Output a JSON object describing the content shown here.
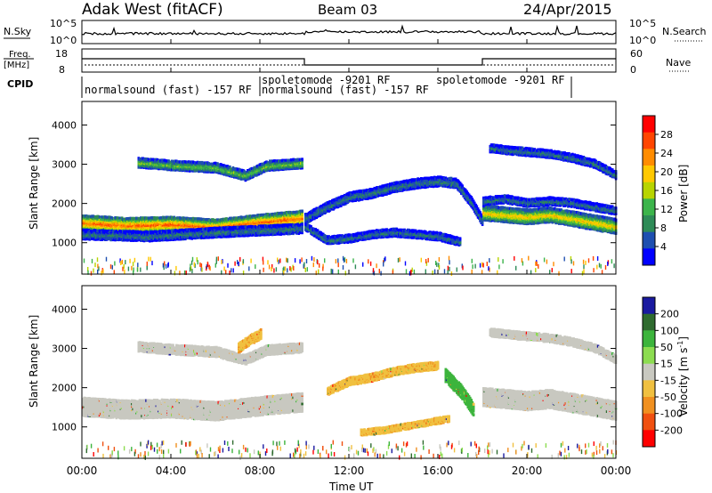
{
  "header": {
    "station": "Adak West (fitACF)",
    "beam": "Beam 03",
    "date": "24/Apr/2015"
  },
  "top_panels": {
    "nsky_label": "N.Sky",
    "nsky_ticks": [
      "10^5",
      "10^0"
    ],
    "nsearch_label": "N.Search",
    "nsearch_ticks": [
      "10^5",
      "10^0"
    ],
    "freq_label": "Freq.",
    "freq_unit": "[MHz]",
    "freq_ticks": [
      "18",
      "8"
    ],
    "nave_label": "Nave",
    "nave_ticks": [
      "60",
      "0"
    ],
    "cpid_label": "CPID",
    "cpid_segments": [
      {
        "name": "normalsound (fast) -157 RF",
        "start_hr": 0.0,
        "end_hr": 10.0
      },
      {
        "name": "spoletomode -9201 RF",
        "start_hr": 10.0,
        "end_hr": 18.0
      },
      {
        "name": "normalsound (fast) -157 RF",
        "start_hr": 10.0,
        "end_hr": 18.0
      },
      {
        "name": "spoletomode -9201 RF",
        "start_hr": 18.0,
        "end_hr": 24.0
      }
    ]
  },
  "axis": {
    "x_label": "Time UT",
    "x_ticks": [
      "00:00",
      "04:00",
      "08:00",
      "12:00",
      "16:00",
      "20:00",
      "00:00"
    ],
    "y_label_html": "Slant Range [km]",
    "y_ticks": [
      "1000",
      "2000",
      "3000",
      "4000"
    ]
  },
  "colorbars": {
    "power": {
      "label": "Power [dB]",
      "ticks": [
        "28",
        "24",
        "20",
        "16",
        "12",
        "8",
        "4"
      ],
      "colors": [
        "#ff0000",
        "#ff4500",
        "#ff8c00",
        "#ffc800",
        "#b8d400",
        "#3cb44b",
        "#2e8b57",
        "#1e4fb0",
        "#0000ff"
      ]
    },
    "velocity": {
      "label": "Velocity [m s",
      "label_sup": "-1",
      "label_end": "]",
      "ticks": [
        "200",
        "100",
        "50",
        "15",
        "-15",
        "-50",
        "-100",
        "-200"
      ],
      "colors": [
        "#1a1aa0",
        "#2f6b2f",
        "#3cb43c",
        "#8cdc50",
        "#c8c8c0",
        "#f0c040",
        "#f09020",
        "#f05010",
        "#ff0000"
      ]
    }
  },
  "chart_data": {
    "type": "heatmap",
    "title": "Adak West (fitACF)",
    "xlabel": "Time UT",
    "ylabel": "Slant Range [km]",
    "xlim": [
      0,
      24
    ],
    "ylim": [
      200,
      4600
    ],
    "power_panel": {
      "variable": "Power [dB]",
      "clim": [
        0,
        32
      ],
      "bands": [
        {
          "name": "main",
          "t": [
            0,
            2,
            4,
            6,
            8,
            9.9
          ],
          "r_center": [
            1500,
            1430,
            1460,
            1390,
            1520,
            1620
          ],
          "half_width": 170,
          "power": 26
        },
        {
          "name": "upper",
          "t": [
            2.5,
            4,
            6,
            7.3,
            8.3,
            9.9
          ],
          "r_center": [
            3030,
            2960,
            2900,
            2700,
            2950,
            3010
          ],
          "half_width": 110,
          "power": 14
        },
        {
          "name": "lower-diffuse",
          "t": [
            0,
            3,
            6,
            9.9
          ],
          "r_center": [
            1200,
            1150,
            1250,
            1350
          ],
          "half_width": 120,
          "power": 8
        },
        {
          "name": "arc",
          "t": [
            10,
            11,
            12,
            13,
            14,
            15,
            16,
            16.8,
            17.5,
            18
          ],
          "r_center": [
            1600,
            1900,
            2150,
            2250,
            2400,
            2500,
            2550,
            2500,
            2000,
            1500
          ],
          "half_width": 110,
          "power": 8
        },
        {
          "name": "low-arc",
          "t": [
            10,
            11,
            12,
            13,
            14,
            15,
            16,
            17
          ],
          "r_center": [
            1400,
            1050,
            1100,
            1200,
            1250,
            1200,
            1150,
            1000
          ],
          "half_width": 90,
          "power": 8
        },
        {
          "name": "main-eve",
          "t": [
            18,
            19,
            20,
            21,
            22,
            23,
            24
          ],
          "r_center": [
            1750,
            1700,
            1650,
            1700,
            1600,
            1500,
            1400
          ],
          "half_width": 170,
          "power": 20
        },
        {
          "name": "upper-eve",
          "t": [
            18,
            19,
            20,
            21,
            22,
            23,
            24
          ],
          "r_center": [
            2050,
            2100,
            2000,
            2050,
            2000,
            1900,
            1800
          ],
          "half_width": 90,
          "power": 8
        },
        {
          "name": "top-eve",
          "t": [
            18.3,
            19,
            20,
            21,
            22,
            23,
            24
          ],
          "r_center": [
            3400,
            3350,
            3300,
            3250,
            3150,
            3000,
            2700
          ],
          "half_width": 90,
          "power": 8
        }
      ]
    },
    "velocity_panel": {
      "variable": "Velocity [m s-1]",
      "clim": [
        -200,
        200
      ],
      "bands": [
        {
          "name": "main",
          "t": [
            0,
            2,
            4,
            6,
            8,
            9.9
          ],
          "r_center": [
            1500,
            1430,
            1460,
            1390,
            1520,
            1620
          ],
          "half_width": 220,
          "velocity": 0
        },
        {
          "name": "upper",
          "t": [
            2.5,
            4,
            6,
            7.3,
            8.3,
            9.9
          ],
          "r_center": [
            3030,
            2960,
            2900,
            2700,
            2950,
            3010
          ],
          "half_width": 110,
          "velocity": 0
        },
        {
          "name": "upper-orange",
          "t": [
            7,
            7.5,
            8
          ],
          "r_center": [
            3000,
            3200,
            3350
          ],
          "half_width": 120,
          "velocity": -60
        },
        {
          "name": "arc",
          "t": [
            11,
            12,
            13,
            14,
            15,
            16
          ],
          "r_center": [
            1900,
            2150,
            2250,
            2400,
            2500,
            2550
          ],
          "half_width": 80,
          "velocity": -60
        },
        {
          "name": "low-arc",
          "t": [
            12.5,
            13.5,
            14.5,
            15.5,
            16.5
          ],
          "r_center": [
            850,
            900,
            1000,
            1100,
            1200
          ],
          "half_width": 60,
          "velocity": -60
        },
        {
          "name": "green-streak",
          "t": [
            16.3,
            17,
            17.6
          ],
          "r_center": [
            2300,
            1900,
            1400
          ],
          "half_width": 150,
          "velocity": 80
        },
        {
          "name": "main-eve",
          "t": [
            18,
            19,
            20,
            21,
            22,
            23,
            24
          ],
          "r_center": [
            1750,
            1700,
            1650,
            1700,
            1600,
            1500,
            1400
          ],
          "half_width": 220,
          "velocity": 0
        },
        {
          "name": "top-eve",
          "t": [
            18.3,
            19,
            20,
            21,
            22,
            23,
            24
          ],
          "r_center": [
            3400,
            3350,
            3300,
            3250,
            3150,
            3000,
            2700
          ],
          "half_width": 90,
          "velocity": 0
        }
      ]
    }
  }
}
